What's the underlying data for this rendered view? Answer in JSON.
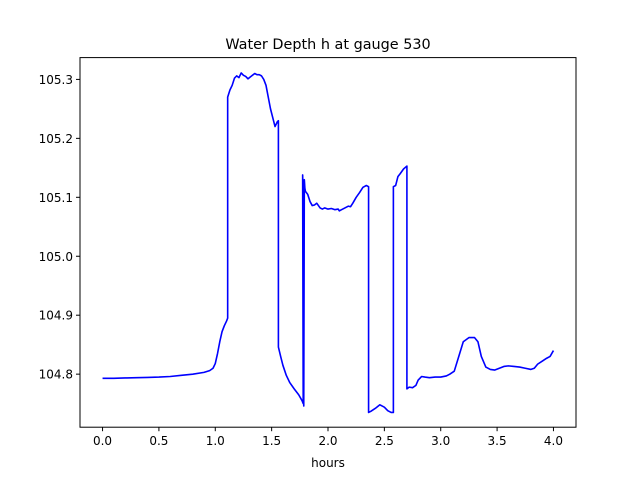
{
  "chart_data": {
    "type": "line",
    "title": "Water Depth h at gauge 530",
    "xlabel": "hours",
    "ylabel": "",
    "xlim": [
      -0.2,
      4.2
    ],
    "ylim": [
      104.71,
      105.337
    ],
    "xticks": [
      0.0,
      0.5,
      1.0,
      1.5,
      2.0,
      2.5,
      3.0,
      3.5,
      4.0
    ],
    "xtick_labels": [
      "0.0",
      "0.5",
      "1.0",
      "1.5",
      "2.0",
      "2.5",
      "3.0",
      "3.5",
      "4.0"
    ],
    "yticks": [
      104.8,
      104.9,
      105.0,
      105.1,
      105.2,
      105.3
    ],
    "ytick_labels": [
      "104.8",
      "104.9",
      "105.0",
      "105.1",
      "105.2",
      "105.3"
    ],
    "grid": false,
    "series": [
      {
        "color": "#0000ff",
        "x": [
          0.0,
          0.1,
          0.2,
          0.3,
          0.4,
          0.5,
          0.6,
          0.7,
          0.8,
          0.9,
          0.95,
          0.98,
          1.0,
          1.02,
          1.04,
          1.06,
          1.08,
          1.1,
          1.11,
          1.11,
          1.13,
          1.15,
          1.17,
          1.19,
          1.21,
          1.23,
          1.25,
          1.27,
          1.29,
          1.31,
          1.33,
          1.35,
          1.37,
          1.39,
          1.41,
          1.43,
          1.45,
          1.47,
          1.49,
          1.51,
          1.53,
          1.55,
          1.56,
          1.56,
          1.58,
          1.6,
          1.63,
          1.66,
          1.7,
          1.74,
          1.77,
          1.78,
          1.775,
          1.78,
          1.785,
          1.79,
          1.795,
          1.8,
          1.82,
          1.84,
          1.86,
          1.88,
          1.9,
          1.93,
          1.95,
          1.97,
          2.0,
          2.03,
          2.06,
          2.09,
          2.1,
          2.12,
          2.15,
          2.18,
          2.2,
          2.22,
          2.25,
          2.28,
          2.31,
          2.34,
          2.36,
          2.36,
          2.38,
          2.42,
          2.46,
          2.5,
          2.53,
          2.56,
          2.58,
          2.58,
          2.6,
          2.62,
          2.64,
          2.67,
          2.7,
          2.7,
          2.72,
          2.75,
          2.78,
          2.8,
          2.83,
          2.86,
          2.9,
          2.95,
          3.0,
          3.05,
          3.08,
          3.12,
          3.16,
          3.2,
          3.25,
          3.3,
          3.33,
          3.36,
          3.4,
          3.44,
          3.48,
          3.52,
          3.56,
          3.6,
          3.65,
          3.7,
          3.75,
          3.8,
          3.83,
          3.86,
          3.9,
          3.94,
          3.97,
          4.0
        ],
        "y": [
          104.793,
          104.793,
          104.7935,
          104.794,
          104.7945,
          104.795,
          104.796,
          104.798,
          104.8,
          104.803,
          104.806,
          104.81,
          104.818,
          104.835,
          104.855,
          104.872,
          104.882,
          104.89,
          104.895,
          105.27,
          105.282,
          105.29,
          105.302,
          105.306,
          105.303,
          105.311,
          105.307,
          105.305,
          105.301,
          105.304,
          105.307,
          105.31,
          105.308,
          105.308,
          105.306,
          105.3,
          105.29,
          105.27,
          105.25,
          105.235,
          105.22,
          105.228,
          105.23,
          104.846,
          104.83,
          104.815,
          104.798,
          104.786,
          104.775,
          104.765,
          104.755,
          104.75,
          105.138,
          105.1,
          104.746,
          105.13,
          105.115,
          105.11,
          105.105,
          105.093,
          105.086,
          105.087,
          105.09,
          105.082,
          105.08,
          105.082,
          105.08,
          105.081,
          105.079,
          105.08,
          105.077,
          105.079,
          105.082,
          105.085,
          105.084,
          105.09,
          105.1,
          105.108,
          105.117,
          105.12,
          105.118,
          104.735,
          104.737,
          104.742,
          104.748,
          104.744,
          104.738,
          104.735,
          104.735,
          105.118,
          105.12,
          105.135,
          105.14,
          105.148,
          105.153,
          104.775,
          104.778,
          104.777,
          104.781,
          104.79,
          104.796,
          104.795,
          104.794,
          104.795,
          104.795,
          104.797,
          104.8,
          104.805,
          104.83,
          104.855,
          104.862,
          104.862,
          104.855,
          104.83,
          104.812,
          104.808,
          104.807,
          104.81,
          104.813,
          104.814,
          104.813,
          104.812,
          104.81,
          104.808,
          104.81,
          104.817,
          104.822,
          104.827,
          104.83,
          104.84
        ]
      }
    ]
  }
}
